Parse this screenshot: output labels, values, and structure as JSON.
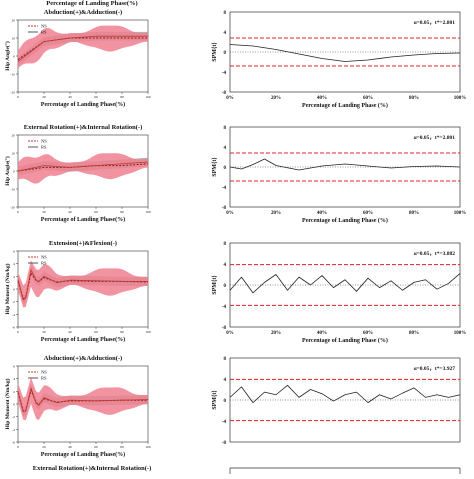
{
  "top_cut_text": "Percentage of Landing Phase(%)",
  "bottom_cut_text": "External Rotation(+)&Internal Rotation(-)",
  "spm_label": "SPM{t}",
  "spm_xlabel": "Percentage of Landing Phase (%)",
  "colors": {
    "ns_line": "#c0392b",
    "rs_band": "#f08090",
    "ns_band": "#999999",
    "threshold": "#e0202a",
    "spm_line": "#222222"
  },
  "chart_data": [
    {
      "type": "line",
      "title": "Abduction(+)&Adduction(-)",
      "ylabel": "Hip Angle(°)",
      "xlabel": "Percentage of Landing Phase(%)",
      "x": [
        0,
        20,
        40,
        60,
        80,
        100
      ],
      "ylim": [
        -20,
        20
      ],
      "yticks": [
        "20",
        "10",
        "0",
        "-10",
        "-20"
      ],
      "legend": [
        "NS",
        "RS"
      ],
      "series": [
        {
          "name": "NS",
          "values": [
            -3,
            8,
            10,
            11,
            11,
            11
          ]
        },
        {
          "name": "RS",
          "values": [
            -2,
            8,
            10,
            10,
            10,
            10
          ]
        }
      ]
    },
    {
      "type": "line",
      "title": "",
      "ylabel": "SPM{t}",
      "xlabel": "Percentage of Landing Phase (%)",
      "xticks": [
        "0%",
        "20%",
        "40%",
        "60%",
        "80%",
        "100%"
      ],
      "yticks": [
        "8",
        "4",
        "0",
        "-4",
        "-8"
      ],
      "ylim": [
        -8,
        8
      ],
      "annotation": "α=0.05，t*=2.801",
      "threshold": 2.801,
      "x": [
        0,
        10,
        20,
        30,
        40,
        50,
        60,
        70,
        80,
        90,
        100
      ],
      "values": [
        1.5,
        1.2,
        0.5,
        -0.4,
        -1.3,
        -1.9,
        -1.6,
        -1.0,
        -0.6,
        -0.3,
        -0.2
      ]
    },
    {
      "type": "line",
      "title": "External Rotation(+)&Internal Rotation(-)",
      "ylabel": "Hip Angle(°)",
      "xlabel": "Percentage of Landing Phase(%)",
      "x": [
        0,
        20,
        40,
        60,
        80,
        100
      ],
      "ylim": [
        -20,
        20
      ],
      "yticks": [
        "20",
        "10",
        "0",
        "-10",
        "-20"
      ],
      "legend": [
        "NS",
        "RS"
      ],
      "series": [
        {
          "name": "NS",
          "values": [
            0,
            3,
            2,
            3,
            4,
            5
          ]
        },
        {
          "name": "RS",
          "values": [
            0,
            2,
            2,
            3,
            3,
            4
          ]
        }
      ]
    },
    {
      "type": "line",
      "title": "",
      "ylabel": "SPM{t}",
      "xlabel": "Percentage of Landing Phase (%)",
      "xticks": [
        "0%",
        "20%",
        "40%",
        "60%",
        "80%",
        "100%"
      ],
      "yticks": [
        "8",
        "4",
        "0",
        "-4",
        "-8"
      ],
      "ylim": [
        -8,
        8
      ],
      "annotation": "α=0.05，t*=2.801",
      "threshold": 2.801,
      "x": [
        0,
        5,
        10,
        15,
        20,
        30,
        40,
        50,
        60,
        70,
        80,
        90,
        100
      ],
      "values": [
        0,
        -0.4,
        0.5,
        1.6,
        0.3,
        -0.6,
        0.2,
        0.6,
        0.2,
        -0.2,
        0.1,
        0.2,
        0.0
      ]
    },
    {
      "type": "line",
      "title": "Extension(+)&Flexion(-)",
      "ylabel": "Hip Moment (Nm/kg)",
      "xlabel": "Percentage of Landing Phase(%)",
      "x": [
        0,
        5,
        10,
        15,
        20,
        30,
        40,
        60,
        80,
        100
      ],
      "ylim": [
        -6,
        6
      ],
      "yticks": [
        "6",
        "4",
        "2",
        "0",
        "-2",
        "-4",
        "-6"
      ],
      "legend": [
        "NS",
        "RS"
      ],
      "series": [
        {
          "name": "NS",
          "values": [
            1.5,
            -2.5,
            3.0,
            1.0,
            2.0,
            1.0,
            1.4,
            1.3,
            1.2,
            1.2
          ]
        },
        {
          "name": "RS",
          "values": [
            1.2,
            -2.2,
            2.5,
            1.0,
            1.8,
            1.1,
            1.3,
            1.2,
            1.2,
            1.1
          ]
        }
      ]
    },
    {
      "type": "line",
      "title": "",
      "ylabel": "SPM{t}",
      "xlabel": "Percentage of Landing Phase (%)",
      "xticks": [
        "0%",
        "20%",
        "40%",
        "60%",
        "80%",
        "100%"
      ],
      "yticks": [
        "8",
        "4",
        "0",
        "-4",
        "-8"
      ],
      "ylim": [
        -8,
        8
      ],
      "annotation": "α=0.05，t*=3.882",
      "threshold": 3.882,
      "x": [
        0,
        5,
        10,
        15,
        20,
        25,
        30,
        35,
        40,
        45,
        50,
        55,
        60,
        65,
        70,
        75,
        80,
        85,
        90,
        95,
        100
      ],
      "values": [
        -1.0,
        1.5,
        -1.5,
        0.5,
        2.0,
        -1.0,
        1.5,
        0,
        1.8,
        -0.5,
        1.0,
        -1.2,
        1.3,
        -0.5,
        0.8,
        -1.0,
        0.5,
        1.0,
        -0.8,
        0.3,
        2.2
      ]
    },
    {
      "type": "line",
      "title": "Abduction(+)&Adduction(-)",
      "ylabel": "Hip Moment (Nm/kg)",
      "xlabel": "Percentage of Landing Phase(%)",
      "x": [
        0,
        5,
        10,
        15,
        20,
        30,
        40,
        60,
        80,
        100
      ],
      "ylim": [
        -6,
        6
      ],
      "yticks": [
        "6",
        "4",
        "2",
        "0",
        "-2",
        "-4",
        "-6"
      ],
      "legend": [
        "NS",
        "RS"
      ],
      "series": [
        {
          "name": "NS",
          "values": [
            2.0,
            -2.0,
            2.5,
            -0.5,
            1.0,
            0.2,
            0.6,
            0.5,
            0.6,
            0.7
          ]
        },
        {
          "name": "RS",
          "values": [
            1.8,
            -1.8,
            2.2,
            -0.3,
            0.8,
            0.3,
            0.5,
            0.5,
            0.6,
            0.6
          ]
        }
      ]
    },
    {
      "type": "line",
      "title": "",
      "ylabel": "SPM{t}",
      "xlabel": "",
      "xticks": [],
      "yticks": [
        "8",
        "4",
        "0",
        "-4",
        "-8"
      ],
      "ylim": [
        -8,
        8
      ],
      "annotation": "α=0.05，t*=3.927",
      "threshold": 3.927,
      "x": [
        0,
        5,
        10,
        15,
        20,
        25,
        30,
        35,
        40,
        45,
        50,
        55,
        60,
        65,
        70,
        75,
        80,
        85,
        90,
        95,
        100
      ],
      "values": [
        0.5,
        2.5,
        -0.5,
        1.5,
        1.0,
        2.8,
        0.5,
        2.0,
        1.2,
        -0.2,
        1.0,
        1.5,
        -0.5,
        1.0,
        0.2,
        1.3,
        2.3,
        0.5,
        1.0,
        0.5,
        1.0
      ]
    }
  ]
}
